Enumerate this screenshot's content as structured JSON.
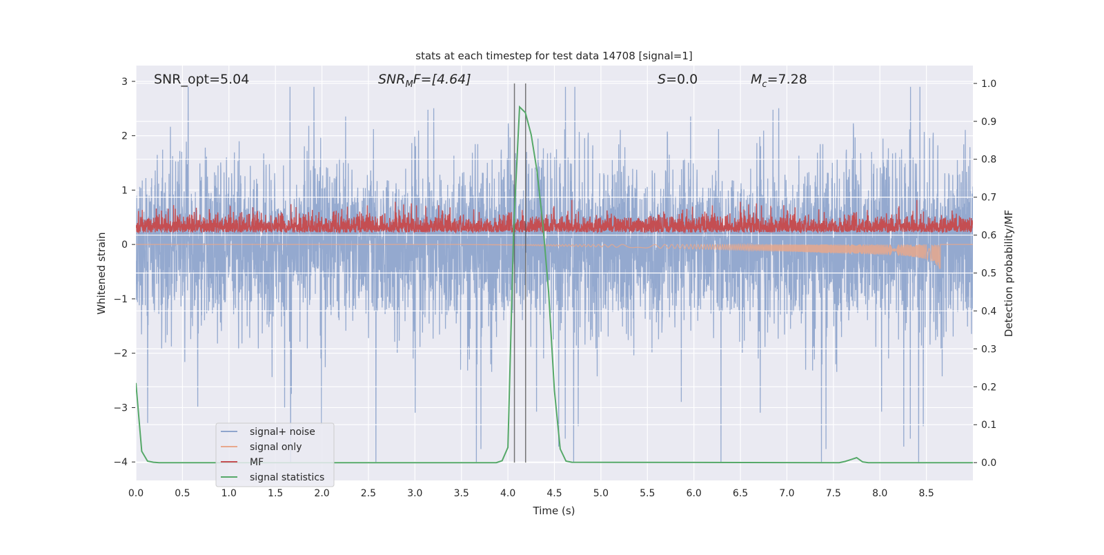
{
  "chart_data": {
    "type": "line",
    "title": "stats at each timestep for test data 14708 [signal=1]",
    "xlabel": "Time (s)",
    "ylabel": "Whitened strain",
    "ylabel_right": "Detection probability/MF",
    "xlim": [
      0,
      9.0
    ],
    "ylim": [
      -4.34,
      3.29
    ],
    "ylim_right": [
      -0.047,
      1.047
    ],
    "grid": true,
    "legend_placement": "lower-left",
    "xticks": [
      "0.0",
      "0.5",
      "1.0",
      "1.5",
      "2.0",
      "2.5",
      "3.0",
      "3.5",
      "4.0",
      "4.5",
      "5.0",
      "5.5",
      "6.0",
      "6.5",
      "7.0",
      "7.5",
      "8.0",
      "8.5"
    ],
    "yticks": [
      "−4",
      "−3",
      "−2",
      "−1",
      "0",
      "1",
      "2",
      "3"
    ],
    "yticks_right": [
      "0.0",
      "0.1",
      "0.2",
      "0.3",
      "0.4",
      "0.5",
      "0.6",
      "0.7",
      "0.8",
      "0.9",
      "1.0"
    ],
    "annotations": {
      "snr_opt": "SNR_opt=5.04",
      "snr_mf_base": "SNR",
      "snr_mf_sub": "M",
      "snr_mf_rest": "F=[4.64]",
      "s_var": "S",
      "s_rest": "=0.0",
      "mc_var": "M",
      "mc_sub": "c",
      "mc_rest": "=7.28"
    },
    "vertical_lines_x": [
      4.07,
      4.19
    ],
    "series": [
      {
        "name": "signal+ noise",
        "color": "#8fa5cc",
        "axis": "left",
        "amplitude_typical": 1.2,
        "amplitude_max": 2.9
      },
      {
        "name": "signal only",
        "color": "#e8a88c",
        "axis": "left",
        "chirp_end_time": 8.65,
        "chirp_peak_amplitude": 0.5
      },
      {
        "name": "MF",
        "color": "#c44e52",
        "axis": "left",
        "range": [
          0.05,
          0.9
        ]
      },
      {
        "name": "signal statistics",
        "color": "#55a868",
        "axis": "right",
        "x": [
          0,
          0.0625,
          0.125,
          0.1875,
          0.25,
          3.875,
          3.9375,
          4.0,
          4.0625,
          4.125,
          4.1875,
          4.25,
          4.3125,
          4.375,
          4.4375,
          4.5,
          4.5625,
          4.625,
          4.6875,
          7.5625,
          7.625,
          7.6875,
          7.75,
          7.8125,
          7.875,
          9.0
        ],
        "y": [
          0.21,
          0.03,
          0.004,
          0.001,
          0,
          0,
          0.005,
          0.04,
          0.62,
          0.938,
          0.923,
          0.865,
          0.77,
          0.63,
          0.45,
          0.19,
          0.036,
          0.004,
          0.001,
          0,
          0.003,
          0.008,
          0.013,
          0.002,
          0,
          0
        ]
      }
    ]
  }
}
